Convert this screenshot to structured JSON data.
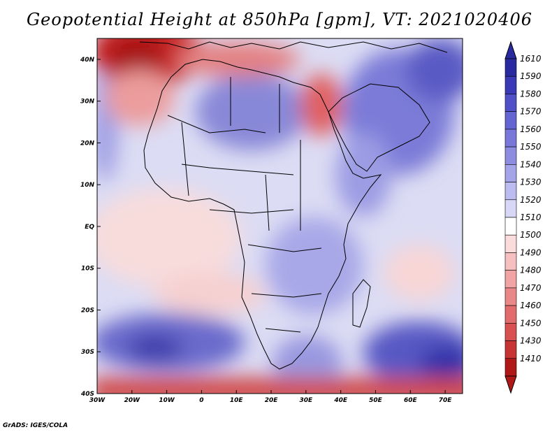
{
  "title": "Geopotential Height at 850hPa [gpm], VT: 2021020406",
  "footer": "GrADS: IGES/COLA",
  "map": {
    "region": "Africa and surroundings",
    "lon_range": [
      -30,
      75
    ],
    "lat_range": [
      -40,
      45
    ],
    "lon_ticks": [
      "30W",
      "20W",
      "10W",
      "0",
      "10E",
      "20E",
      "30E",
      "40E",
      "50E",
      "60E",
      "70E"
    ],
    "lat_ticks": [
      "40N",
      "30N",
      "20N",
      "10N",
      "EQ",
      "10S",
      "20S",
      "30S",
      "40S"
    ]
  },
  "colorbar": {
    "labels": [
      "1610",
      "1590",
      "1580",
      "1570",
      "1560",
      "1550",
      "1540",
      "1530",
      "1520",
      "1510",
      "1500",
      "1490",
      "1480",
      "1470",
      "1460",
      "1450",
      "1430",
      "1410"
    ],
    "colors": [
      "#2a2aa0",
      "#3a3ab8",
      "#5050c8",
      "#6464d2",
      "#7878da",
      "#8c8ce0",
      "#a4a4e8",
      "#bcbcf0",
      "#d8d8f6",
      "#ffffff",
      "#fadcdc",
      "#f6c0c0",
      "#f0a4a4",
      "#ea8888",
      "#e26c6c",
      "#d85050",
      "#c83434",
      "#b01818"
    ]
  }
}
